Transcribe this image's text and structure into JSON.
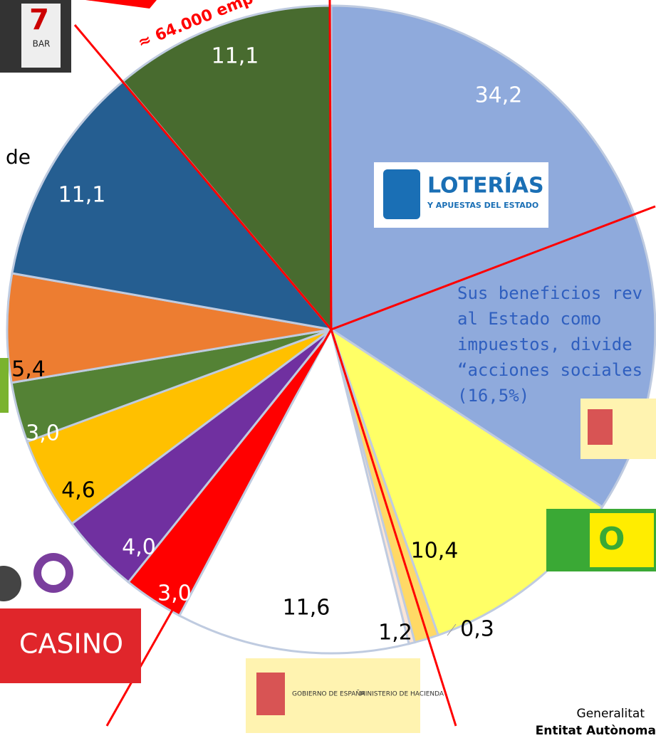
{
  "chart_data": {
    "type": "pie",
    "categories": [
      null,
      null,
      null,
      null,
      null,
      null,
      null,
      null,
      null,
      null,
      null,
      null
    ],
    "values": [
      34.2,
      10.4,
      1.2,
      0.3,
      11.6,
      3.0,
      4.0,
      4.6,
      3.0,
      5.4,
      11.1,
      11.1
    ],
    "value_labels": [
      "34,2",
      "10,4",
      "1,2",
      "0,3",
      "11,6",
      "3,0",
      "4,0",
      "4,6",
      "3,0",
      "5,4",
      "11,1",
      "11,1"
    ],
    "colors": [
      "#8faadc",
      "#ffff66",
      "#ffd966",
      "#fbe5d6",
      "#ffffff",
      "#ff0000",
      "#7030a0",
      "#ffc000",
      "#548235",
      "#ed7d31",
      "#255e91",
      "#486b2f"
    ],
    "annotations": [
      "≈ 64.000 emp",
      "de",
      "Sus beneficios rev",
      "al Estado como",
      "impuestos, divide",
      "“acciones sociales",
      "(16,5%)",
      "Generalitat",
      "Entitat Autònoma",
      "LOTERÍAS",
      "Y APUESTAS DEL ESTADO",
      "GOBIERNO DE ESPAÑA",
      "MINISTERIO DE HACIENDA",
      "CASINO",
      "O",
      "BAR"
    ]
  }
}
